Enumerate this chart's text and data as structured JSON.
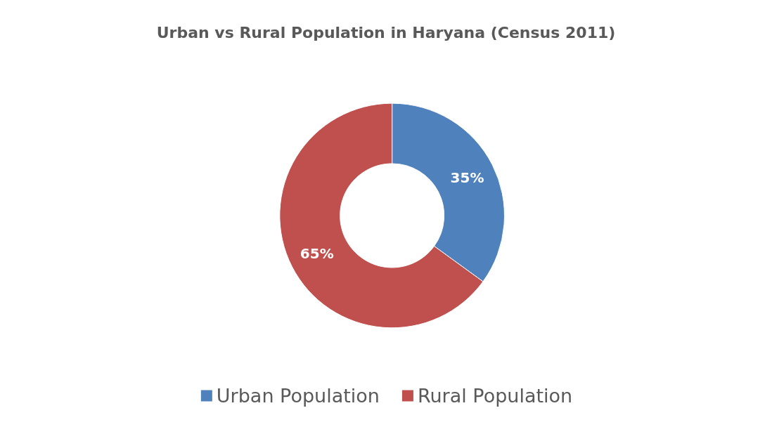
{
  "chart_data": {
    "type": "donut",
    "title": "Urban vs Rural Population in Haryana (Census 2011)",
    "categories": [
      "Urban Population",
      "Rural Population"
    ],
    "values": [
      35,
      65
    ],
    "colors": [
      "#4f81bd",
      "#c0504d"
    ],
    "value_labels": [
      "35%",
      "65%"
    ],
    "legend": "bottom"
  }
}
